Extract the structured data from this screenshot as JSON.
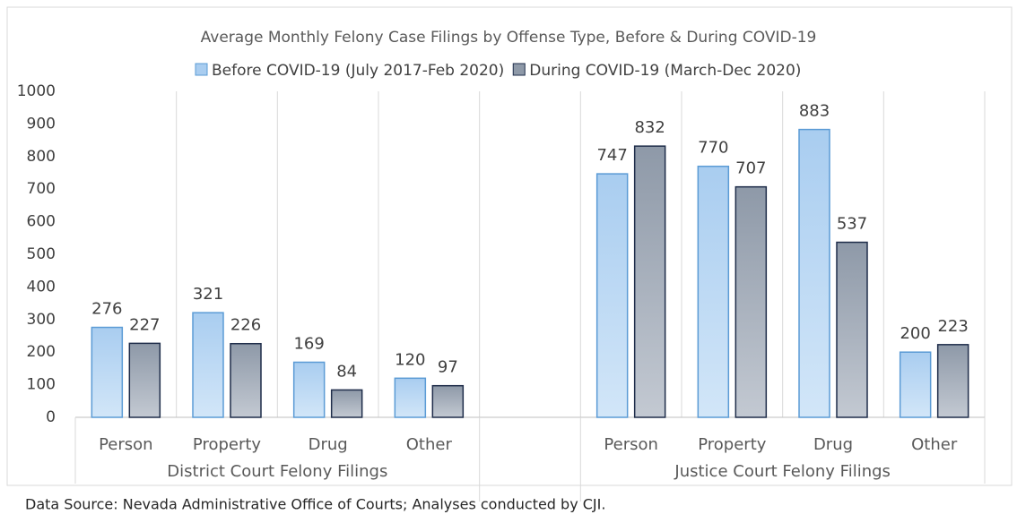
{
  "chart_data": {
    "type": "bar",
    "title": "Average Monthly Felony Case Filings by Offense Type, Before & During COVID-19",
    "categories": [
      "Person",
      "Property",
      "Drug",
      "Other",
      null,
      "Person",
      "Property",
      "Drug",
      "Other"
    ],
    "group_labels": [
      "District Court Felony Filings",
      "Justice Court Felony Filings"
    ],
    "series": [
      {
        "name": "Before COVID-19 (July 2017-Feb 2020)",
        "color": "#a9cdf0",
        "edge": "#5b9bd5",
        "values": [
          276,
          321,
          169,
          120,
          null,
          747,
          770,
          883,
          200
        ]
      },
      {
        "name": "During COVID-19 (March-Dec 2020)",
        "color": "#8e99a8",
        "edge": "#1f2d4a",
        "values": [
          227,
          226,
          84,
          97,
          null,
          832,
          707,
          537,
          223
        ]
      }
    ],
    "ylim": [
      0,
      1000
    ],
    "yticks": [
      0,
      100,
      200,
      300,
      400,
      500,
      600,
      700,
      800,
      900,
      1000
    ],
    "grid": true,
    "footnote": "Data Source: Nevada Administrative Office of Courts; Analyses conducted by CJI."
  }
}
